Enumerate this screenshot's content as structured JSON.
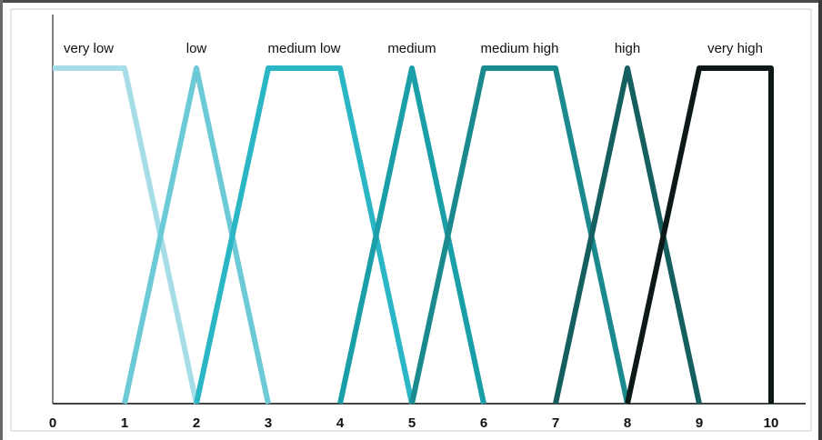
{
  "chart_data": {
    "type": "line",
    "title": "",
    "xlabel": "",
    "ylabel": "",
    "xlim": [
      0,
      10
    ],
    "ylim": [
      0,
      1
    ],
    "grid": false,
    "x_ticks": [
      "0",
      "1",
      "2",
      "3",
      "4",
      "5",
      "6",
      "7",
      "8",
      "9",
      "10"
    ],
    "series": [
      {
        "name": "very low",
        "color": "#a6dde6",
        "points": [
          [
            0,
            1
          ],
          [
            1,
            1
          ],
          [
            2,
            0
          ]
        ]
      },
      {
        "name": "low",
        "color": "#6ccad6",
        "points": [
          [
            1,
            0
          ],
          [
            2,
            1
          ],
          [
            3,
            0
          ]
        ]
      },
      {
        "name": "medium low",
        "color": "#2bb6c6",
        "points": [
          [
            2,
            0
          ],
          [
            3,
            1
          ],
          [
            4,
            1
          ],
          [
            5,
            0
          ]
        ]
      },
      {
        "name": "medium",
        "color": "#1a9fa8",
        "points": [
          [
            4,
            0
          ],
          [
            5,
            1
          ],
          [
            6,
            0
          ]
        ]
      },
      {
        "name": "medium high",
        "color": "#1a8a8e",
        "points": [
          [
            5,
            0
          ],
          [
            6,
            1
          ],
          [
            7,
            1
          ],
          [
            8,
            0
          ]
        ]
      },
      {
        "name": "high",
        "color": "#165f60",
        "points": [
          [
            7,
            0
          ],
          [
            8,
            1
          ],
          [
            9,
            0
          ]
        ]
      },
      {
        "name": "very high",
        "color": "#0d1818",
        "points": [
          [
            8,
            0
          ],
          [
            9,
            1
          ],
          [
            10,
            1
          ],
          [
            10,
            0
          ]
        ]
      }
    ]
  }
}
